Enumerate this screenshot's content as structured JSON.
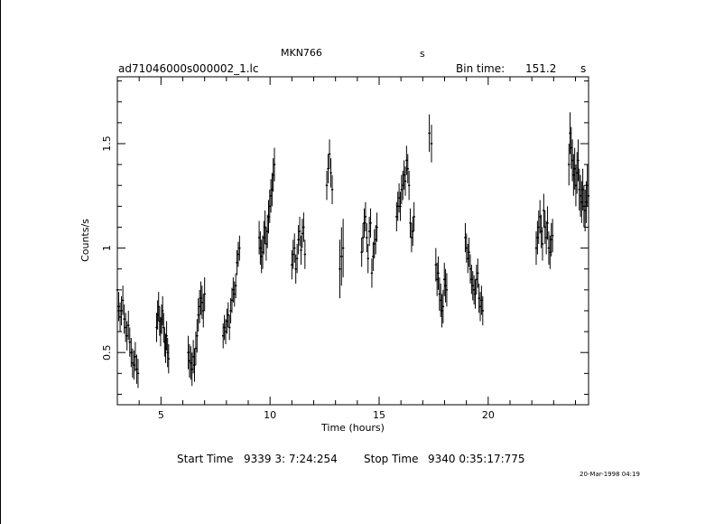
{
  "header": {
    "object": "MKN766",
    "object_unit": "s",
    "filename": "ad71046000s000002_1.lc",
    "bin_label": "Bin time:",
    "bin_value": "151.2",
    "bin_unit": "s"
  },
  "footer": {
    "start_label": "Start Time",
    "start_value": "9339  3: 7:24:254",
    "stop_label": "Stop Time",
    "stop_value": "9340  0:35:17:775",
    "stamp": "20-Mar-1998 04:19"
  },
  "chart_data": {
    "type": "scatter",
    "title": "MKN766",
    "xlabel": "Time (hours)",
    "ylabel": "Counts/s",
    "xlim": [
      3.0,
      24.6
    ],
    "ylim": [
      0.25,
      1.82
    ],
    "xticks": [
      5,
      10,
      15,
      20
    ],
    "yticks": [
      0.5,
      1,
      1.5
    ],
    "ytick_labels": [
      "0.5",
      "1",
      "1.5"
    ],
    "grid": false,
    "error_bars": true,
    "segments": [
      {
        "t0": 3.0,
        "t1": 3.95,
        "values": [
          0.8,
          0.72,
          0.67,
          0.7,
          0.75,
          0.66,
          0.62,
          0.58,
          0.63,
          0.55,
          0.5,
          0.45,
          0.44,
          0.48,
          0.42,
          0.4
        ],
        "err": 0.07
      },
      {
        "t0": 4.8,
        "t1": 5.35,
        "values": [
          0.62,
          0.68,
          0.72,
          0.65,
          0.6,
          0.66,
          0.7,
          0.62,
          0.55,
          0.52,
          0.58,
          0.5,
          0.47
        ],
        "err": 0.07
      },
      {
        "t0": 6.25,
        "t1": 7.0,
        "values": [
          0.5,
          0.46,
          0.45,
          0.42,
          0.48,
          0.44,
          0.52,
          0.58,
          0.68,
          0.72,
          0.76,
          0.74,
          0.7,
          0.78
        ],
        "err": 0.08
      },
      {
        "t0": 7.85,
        "t1": 8.6,
        "values": [
          0.58,
          0.62,
          0.6,
          0.65,
          0.68,
          0.62,
          0.7,
          0.75,
          0.8,
          0.78,
          0.82,
          0.93,
          0.97,
          1.0
        ],
        "err": 0.06
      },
      {
        "t0": 9.5,
        "t1": 10.2,
        "values": [
          1.05,
          1.0,
          0.96,
          0.98,
          1.05,
          1.1,
          1.02,
          1.08,
          1.15,
          1.2,
          1.25,
          1.28,
          1.35,
          1.4
        ],
        "err": 0.08
      },
      {
        "t0": 11.0,
        "t1": 11.6,
        "values": [
          0.92,
          0.97,
          1.0,
          0.9,
          0.95,
          1.04,
          1.08,
          0.99,
          1.07,
          1.1,
          0.97
        ],
        "err": 0.07
      },
      {
        "t0": 12.6,
        "t1": 12.85,
        "values": [
          1.3,
          1.38,
          1.45,
          1.36,
          1.28
        ],
        "err": 0.07
      },
      {
        "t0": 13.2,
        "t1": 13.35,
        "values": [
          0.9,
          0.96,
          1.0
        ],
        "err": 0.14
      },
      {
        "t0": 14.2,
        "t1": 14.9,
        "values": [
          0.98,
          1.05,
          1.12,
          1.15,
          1.05,
          0.95,
          1.08,
          1.12,
          0.88,
          0.96,
          1.02,
          1.04,
          1.1
        ],
        "err": 0.07
      },
      {
        "t0": 15.8,
        "t1": 16.6,
        "values": [
          1.15,
          1.2,
          1.24,
          1.2,
          1.28,
          1.3,
          1.35,
          1.32,
          1.42,
          1.38,
          1.3,
          1.12,
          1.05,
          1.08,
          1.15
        ],
        "err": 0.07
      },
      {
        "t0": 17.3,
        "t1": 17.4,
        "values": [
          1.55,
          1.5
        ],
        "err": 0.09
      },
      {
        "t0": 17.6,
        "t1": 18.1,
        "values": [
          0.92,
          0.85,
          0.88,
          0.78,
          0.75,
          0.7,
          0.72,
          0.85,
          0.82,
          0.8
        ],
        "err": 0.08
      },
      {
        "t0": 18.95,
        "t1": 19.75,
        "values": [
          1.05,
          1.0,
          0.95,
          0.98,
          0.9,
          0.85,
          0.82,
          0.8,
          0.78,
          0.85,
          0.88,
          0.76,
          0.72,
          0.75,
          0.7
        ],
        "err": 0.07
      },
      {
        "t0": 22.2,
        "t1": 22.95,
        "values": [
          1.0,
          1.05,
          1.1,
          1.15,
          1.08,
          1.02,
          1.18,
          1.1,
          1.05,
          1.12,
          1.0,
          0.98,
          1.04,
          1.06
        ],
        "err": 0.08
      },
      {
        "t0": 23.7,
        "t1": 24.6,
        "values": [
          1.4,
          1.55,
          1.48,
          1.42,
          1.35,
          1.38,
          1.3,
          1.36,
          1.42,
          1.28,
          1.25,
          1.22,
          1.28,
          1.2,
          1.18,
          1.22,
          1.3,
          1.25
        ],
        "err": 0.1
      }
    ]
  }
}
